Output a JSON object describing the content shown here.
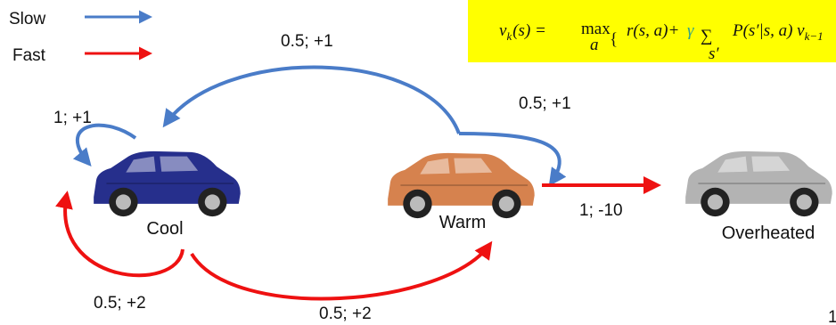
{
  "legend": {
    "items": [
      {
        "label": "Slow"
      },
      {
        "label": "Fast"
      }
    ]
  },
  "formula": {
    "lhs": "v",
    "lhs_sub": "k",
    "lhs_rest": "(s) =",
    "max": "max",
    "max_sub": "a",
    "brace": "{",
    "reward": "r(s, a)+",
    "gamma": "γ",
    "sum": "∑",
    "sum_sub": "s′",
    "term": "P(s′|s, a) v",
    "term_sub": "k−1"
  },
  "nodes": [
    {
      "label": "Cool"
    },
    {
      "label": "Warm"
    },
    {
      "label": "Overheated"
    }
  ],
  "edges": [
    {
      "label": "1; +1"
    },
    {
      "label": "0.5; +1"
    },
    {
      "label": "0.5; +1"
    },
    {
      "label": "0.5; +2"
    },
    {
      "label": "0.5; +2"
    },
    {
      "label": "1; -10"
    }
  ],
  "page_number": "1"
}
